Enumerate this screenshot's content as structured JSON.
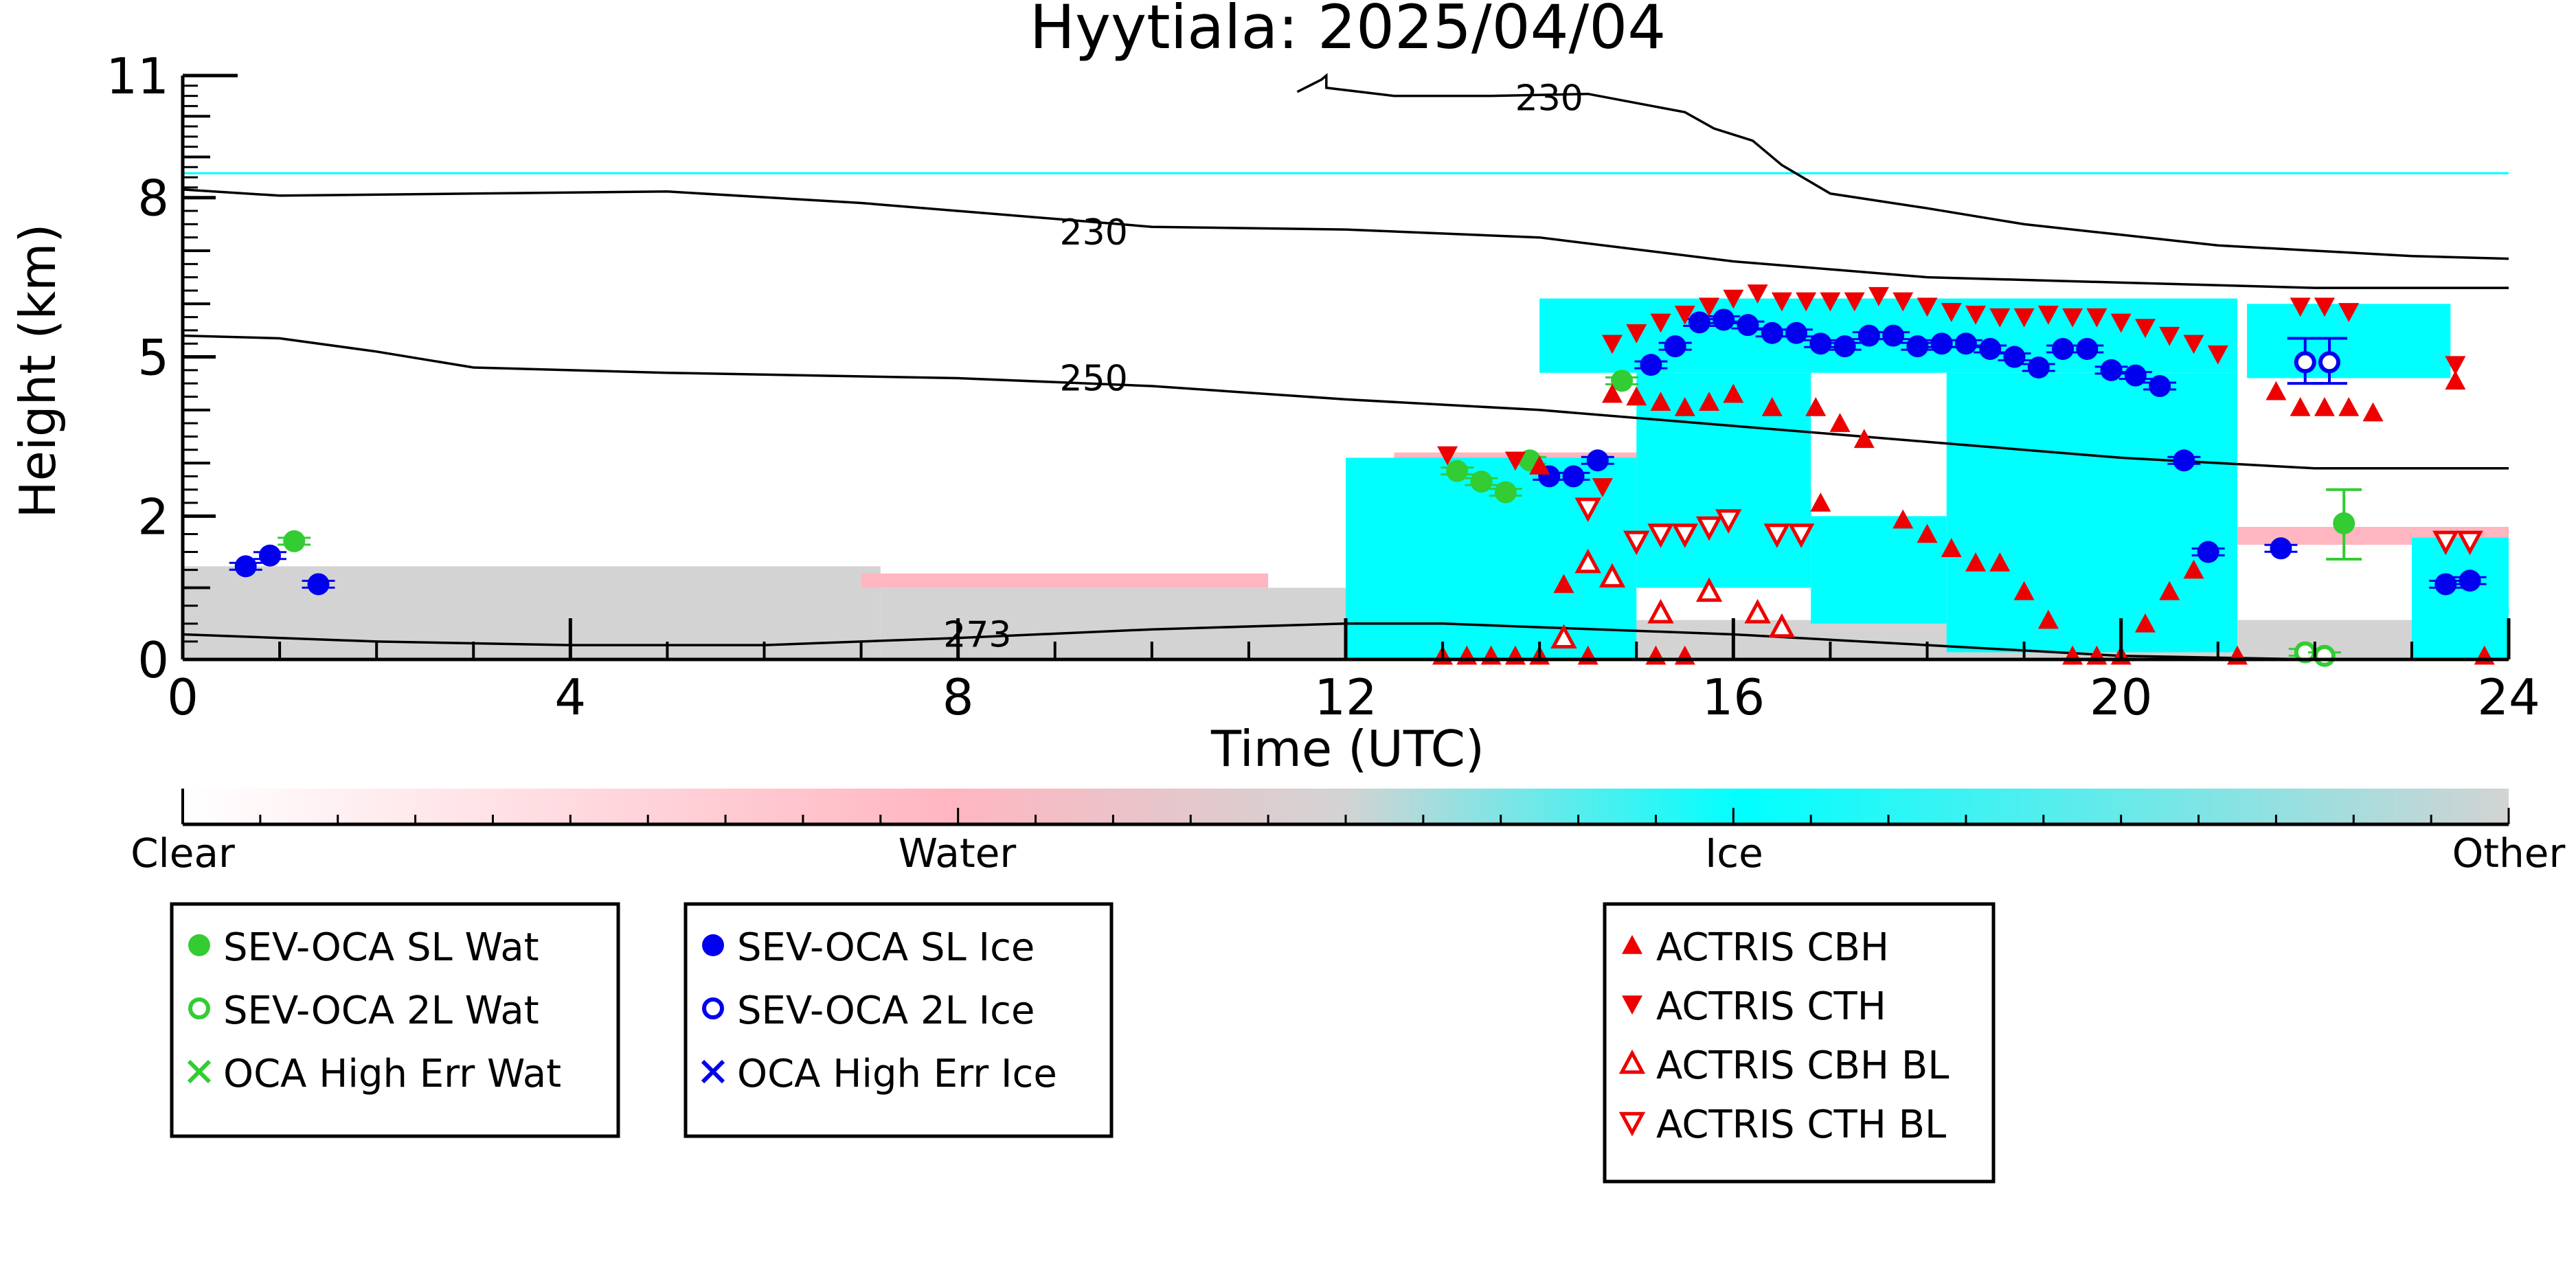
{
  "chart_data": {
    "type": "scatter",
    "title": "Hyytiala: 2025/04/04",
    "xlabel": "Time (UTC)",
    "ylabel": "Height (km)",
    "xlim": [
      0,
      24
    ],
    "ylim": [
      0,
      11
    ],
    "xticks": [
      0,
      4,
      8,
      12,
      16,
      20,
      24
    ],
    "yticks": [
      0,
      2,
      5,
      8,
      11
    ],
    "yscale": "nonlinear (stretched near surface)",
    "y_warp_knots": [
      [
        0,
        0
      ],
      [
        2,
        2.7
      ],
      [
        5,
        5.7
      ],
      [
        8,
        8.7
      ],
      [
        11,
        11
      ]
    ],
    "grid": false,
    "cloudnet_classification": {
      "colorbar": {
        "colors": [
          "#ffffff",
          "#ffb6c1",
          "#d3d3d3",
          "#00ffff",
          "#d3d3d3"
        ],
        "labels": [
          "Clear",
          "Water",
          "Ice",
          "Other"
        ]
      },
      "classes": [
        {
          "name": "Other",
          "color": "#d3d3d3",
          "regions": [
            {
              "x": [
                0.0,
                7.2
              ],
              "y": [
                0,
                1.3
              ]
            },
            {
              "x": [
                7.2,
                12.8
              ],
              "y": [
                0,
                1.0
              ]
            },
            {
              "x": [
                12.8,
                24.0
              ],
              "y": [
                0,
                0.55
              ]
            }
          ]
        },
        {
          "name": "Water",
          "color": "#ffb6c1",
          "regions": [
            {
              "x": [
                7.0,
                11.2
              ],
              "y": [
                1.0,
                1.2
              ]
            },
            {
              "x": [
                12.5,
                15.0
              ],
              "y": [
                2.6,
                3.2
              ]
            },
            {
              "x": [
                21.0,
                24.0
              ],
              "y": [
                1.6,
                1.85
              ]
            }
          ]
        },
        {
          "name": "Ice",
          "color": "#00ffff",
          "regions": [
            {
              "x": [
                14.0,
                21.2
              ],
              "y": [
                4.7,
                6.1
              ]
            },
            {
              "x": [
                21.3,
                23.4
              ],
              "y": [
                4.6,
                6.0
              ]
            },
            {
              "x": [
                18.2,
                21.2
              ],
              "y": [
                0.1,
                4.7
              ]
            },
            {
              "x": [
                15.0,
                16.8
              ],
              "y": [
                1.0,
                4.7
              ]
            },
            {
              "x": [
                12.0,
                15.0
              ],
              "y": [
                0.0,
                3.1
              ]
            },
            {
              "x": [
                16.8,
                18.2
              ],
              "y": [
                0.5,
                2.0
              ]
            },
            {
              "x": [
                23.0,
                24.0
              ],
              "y": [
                0.0,
                1.7
              ]
            }
          ]
        }
      ],
      "faint_line_y": 8.6
    },
    "isotherms": [
      {
        "label": "230",
        "label_x": 14.1,
        "label_y": 10.45,
        "points": [
          [
            11.5,
            10.6
          ],
          [
            11.75,
            10.9
          ],
          [
            11.8,
            11.0
          ],
          [
            11.8,
            10.7
          ],
          [
            12.5,
            10.5
          ],
          [
            13.5,
            10.5
          ],
          [
            14.5,
            10.55
          ],
          [
            15.5,
            10.1
          ],
          [
            15.8,
            9.7
          ],
          [
            16.2,
            9.4
          ],
          [
            16.5,
            8.8
          ],
          [
            17.0,
            8.1
          ],
          [
            18.0,
            7.8
          ],
          [
            19.0,
            7.5
          ],
          [
            20.0,
            7.3
          ],
          [
            21.0,
            7.1
          ],
          [
            22.0,
            7.0
          ],
          [
            23.0,
            6.9
          ],
          [
            24.0,
            6.85
          ]
        ]
      },
      {
        "label": "230",
        "label_x": 9.4,
        "label_y": 7.35,
        "points": [
          [
            0,
            8.2
          ],
          [
            1,
            8.05
          ],
          [
            3,
            8.1
          ],
          [
            5,
            8.15
          ],
          [
            7,
            7.9
          ],
          [
            10,
            7.45
          ],
          [
            12,
            7.4
          ],
          [
            14,
            7.25
          ],
          [
            16,
            6.8
          ],
          [
            18,
            6.5
          ],
          [
            20,
            6.4
          ],
          [
            22,
            6.3
          ],
          [
            24,
            6.3
          ]
        ]
      },
      {
        "label": "250",
        "label_x": 9.4,
        "label_y": 4.6,
        "points": [
          [
            0,
            5.4
          ],
          [
            1,
            5.35
          ],
          [
            2,
            5.1
          ],
          [
            3,
            4.8
          ],
          [
            5,
            4.7
          ],
          [
            8,
            4.6
          ],
          [
            10,
            4.45
          ],
          [
            12,
            4.2
          ],
          [
            14,
            4.0
          ],
          [
            16,
            3.7
          ],
          [
            18,
            3.4
          ],
          [
            20,
            3.1
          ],
          [
            22,
            2.9
          ],
          [
            24,
            2.9
          ]
        ]
      },
      {
        "label": "273",
        "label_x": 8.2,
        "label_y": 0.35,
        "points": [
          [
            0,
            0.35
          ],
          [
            2,
            0.25
          ],
          [
            4,
            0.2
          ],
          [
            6,
            0.2
          ],
          [
            8,
            0.3
          ],
          [
            10,
            0.42
          ],
          [
            12,
            0.5
          ],
          [
            13,
            0.5
          ],
          [
            14,
            0.45
          ],
          [
            16,
            0.35
          ],
          [
            18,
            0.2
          ],
          [
            20,
            0.05
          ],
          [
            22,
            0.0
          ]
        ]
      }
    ],
    "series": [
      {
        "name": "SEV-OCA SL Wat",
        "marker": "filled-circle",
        "color": "#33cc33",
        "points": [
          {
            "x": 1.15,
            "y": 1.65
          },
          {
            "x": 13.15,
            "y": 2.85
          },
          {
            "x": 13.4,
            "y": 2.65
          },
          {
            "x": 13.65,
            "y": 2.45
          },
          {
            "x": 13.9,
            "y": 3.05
          },
          {
            "x": 14.85,
            "y": 4.55
          },
          {
            "x": 22.3,
            "y": 1.9,
            "err": [
              1.4,
              2.5
            ]
          }
        ]
      },
      {
        "name": "SEV-OCA 2L Wat",
        "marker": "open-circle",
        "color": "#33cc33",
        "points": [
          {
            "x": 21.9,
            "y": 0.1
          },
          {
            "x": 22.1,
            "y": 0.05
          }
        ]
      },
      {
        "name": "OCA High Err Wat",
        "marker": "cross",
        "color": "#33cc33",
        "points": []
      },
      {
        "name": "SEV-OCA SL Ice",
        "marker": "filled-circle",
        "color": "#0000ee",
        "points": [
          {
            "x": 0.65,
            "y": 1.3
          },
          {
            "x": 0.9,
            "y": 1.45
          },
          {
            "x": 1.4,
            "y": 1.05
          },
          {
            "x": 14.1,
            "y": 2.75
          },
          {
            "x": 14.35,
            "y": 2.75
          },
          {
            "x": 14.6,
            "y": 3.05
          },
          {
            "x": 15.15,
            "y": 4.85
          },
          {
            "x": 15.4,
            "y": 5.2
          },
          {
            "x": 15.65,
            "y": 5.65
          },
          {
            "x": 15.9,
            "y": 5.7
          },
          {
            "x": 16.15,
            "y": 5.6
          },
          {
            "x": 16.4,
            "y": 5.45
          },
          {
            "x": 16.65,
            "y": 5.45
          },
          {
            "x": 16.9,
            "y": 5.25
          },
          {
            "x": 17.15,
            "y": 5.2
          },
          {
            "x": 17.4,
            "y": 5.4
          },
          {
            "x": 17.65,
            "y": 5.4
          },
          {
            "x": 17.9,
            "y": 5.2
          },
          {
            "x": 18.15,
            "y": 5.25
          },
          {
            "x": 18.4,
            "y": 5.25
          },
          {
            "x": 18.65,
            "y": 5.15
          },
          {
            "x": 18.9,
            "y": 5.0
          },
          {
            "x": 19.15,
            "y": 4.8
          },
          {
            "x": 19.4,
            "y": 5.15
          },
          {
            "x": 19.65,
            "y": 5.15
          },
          {
            "x": 19.9,
            "y": 4.75
          },
          {
            "x": 20.15,
            "y": 4.65
          },
          {
            "x": 20.4,
            "y": 4.45
          },
          {
            "x": 20.65,
            "y": 3.05
          },
          {
            "x": 20.9,
            "y": 1.5
          },
          {
            "x": 21.65,
            "y": 1.55
          },
          {
            "x": 23.35,
            "y": 1.05
          },
          {
            "x": 23.6,
            "y": 1.1
          }
        ]
      },
      {
        "name": "SEV-OCA 2L Ice",
        "marker": "open-circle",
        "color": "#0000ee",
        "points": [
          {
            "x": 21.9,
            "y": 4.9,
            "err": [
              4.5,
              5.35
            ]
          },
          {
            "x": 22.15,
            "y": 4.9,
            "err": [
              4.5,
              5.35
            ]
          }
        ]
      },
      {
        "name": "OCA High Err Ice",
        "marker": "cross",
        "color": "#0000ee",
        "points": []
      },
      {
        "name": "ACTRIS CBH",
        "marker": "filled-triangle-up",
        "color": "#ee0000",
        "points": [
          {
            "x": 13.0,
            "y": 0.05
          },
          {
            "x": 13.25,
            "y": 0.05
          },
          {
            "x": 13.5,
            "y": 0.05
          },
          {
            "x": 13.75,
            "y": 0.05
          },
          {
            "x": 14.0,
            "y": 0.05
          },
          {
            "x": 14.5,
            "y": 0.05
          },
          {
            "x": 15.2,
            "y": 0.05
          },
          {
            "x": 15.5,
            "y": 0.05
          },
          {
            "x": 14.25,
            "y": 1.05
          },
          {
            "x": 14.0,
            "y": 2.95
          },
          {
            "x": 14.75,
            "y": 4.3
          },
          {
            "x": 15.0,
            "y": 4.25
          },
          {
            "x": 15.25,
            "y": 4.15
          },
          {
            "x": 15.5,
            "y": 4.05
          },
          {
            "x": 15.75,
            "y": 4.15
          },
          {
            "x": 16.0,
            "y": 4.3
          },
          {
            "x": 16.4,
            "y": 4.05
          },
          {
            "x": 16.85,
            "y": 4.05
          },
          {
            "x": 17.1,
            "y": 3.75
          },
          {
            "x": 17.35,
            "y": 3.45
          },
          {
            "x": 16.9,
            "y": 2.25
          },
          {
            "x": 17.75,
            "y": 1.95
          },
          {
            "x": 18.0,
            "y": 1.75
          },
          {
            "x": 18.25,
            "y": 1.55
          },
          {
            "x": 18.5,
            "y": 1.35
          },
          {
            "x": 18.75,
            "y": 1.35
          },
          {
            "x": 19.0,
            "y": 0.95
          },
          {
            "x": 19.25,
            "y": 0.55
          },
          {
            "x": 19.5,
            "y": 0.05
          },
          {
            "x": 19.75,
            "y": 0.05
          },
          {
            "x": 20.0,
            "y": 0.05
          },
          {
            "x": 20.25,
            "y": 0.5
          },
          {
            "x": 20.5,
            "y": 0.95
          },
          {
            "x": 20.75,
            "y": 1.25
          },
          {
            "x": 21.2,
            "y": 0.05
          },
          {
            "x": 21.6,
            "y": 4.35
          },
          {
            "x": 21.85,
            "y": 4.05
          },
          {
            "x": 22.1,
            "y": 4.05
          },
          {
            "x": 22.35,
            "y": 4.05
          },
          {
            "x": 22.6,
            "y": 3.95
          },
          {
            "x": 23.45,
            "y": 4.55
          },
          {
            "x": 23.75,
            "y": 0.05
          }
        ]
      },
      {
        "name": "ACTRIS CTH",
        "marker": "filled-triangle-down",
        "color": "#ee0000",
        "points": [
          {
            "x": 13.05,
            "y": 3.15
          },
          {
            "x": 13.75,
            "y": 3.05
          },
          {
            "x": 14.65,
            "y": 2.55
          },
          {
            "x": 14.75,
            "y": 5.25
          },
          {
            "x": 15.0,
            "y": 5.45
          },
          {
            "x": 15.25,
            "y": 5.65
          },
          {
            "x": 15.5,
            "y": 5.8
          },
          {
            "x": 15.75,
            "y": 5.95
          },
          {
            "x": 16.0,
            "y": 6.1
          },
          {
            "x": 16.25,
            "y": 6.2
          },
          {
            "x": 16.5,
            "y": 6.05
          },
          {
            "x": 16.75,
            "y": 6.05
          },
          {
            "x": 17.0,
            "y": 6.05
          },
          {
            "x": 17.25,
            "y": 6.05
          },
          {
            "x": 17.5,
            "y": 6.15
          },
          {
            "x": 17.75,
            "y": 6.05
          },
          {
            "x": 18.0,
            "y": 5.95
          },
          {
            "x": 18.25,
            "y": 5.85
          },
          {
            "x": 18.5,
            "y": 5.8
          },
          {
            "x": 18.75,
            "y": 5.75
          },
          {
            "x": 19.0,
            "y": 5.75
          },
          {
            "x": 19.25,
            "y": 5.8
          },
          {
            "x": 19.5,
            "y": 5.75
          },
          {
            "x": 19.75,
            "y": 5.75
          },
          {
            "x": 20.0,
            "y": 5.65
          },
          {
            "x": 20.25,
            "y": 5.55
          },
          {
            "x": 20.5,
            "y": 5.4
          },
          {
            "x": 20.75,
            "y": 5.25
          },
          {
            "x": 21.0,
            "y": 5.05
          },
          {
            "x": 21.85,
            "y": 5.95
          },
          {
            "x": 22.1,
            "y": 5.95
          },
          {
            "x": 22.35,
            "y": 5.85
          },
          {
            "x": 23.45,
            "y": 4.85
          }
        ]
      },
      {
        "name": "ACTRIS CBH BL",
        "marker": "open-triangle-up",
        "color": "#ee0000",
        "points": [
          {
            "x": 14.25,
            "y": 0.3
          },
          {
            "x": 14.5,
            "y": 1.35
          },
          {
            "x": 14.75,
            "y": 1.15
          },
          {
            "x": 15.25,
            "y": 0.65
          },
          {
            "x": 15.75,
            "y": 0.95
          },
          {
            "x": 16.25,
            "y": 0.65
          },
          {
            "x": 16.5,
            "y": 0.45
          }
        ]
      },
      {
        "name": "ACTRIS CTH BL",
        "marker": "open-triangle-down",
        "color": "#ee0000",
        "points": [
          {
            "x": 14.5,
            "y": 2.15
          },
          {
            "x": 15.0,
            "y": 1.65
          },
          {
            "x": 15.25,
            "y": 1.75
          },
          {
            "x": 15.5,
            "y": 1.75
          },
          {
            "x": 15.75,
            "y": 1.85
          },
          {
            "x": 15.95,
            "y": 1.95
          },
          {
            "x": 16.45,
            "y": 1.75
          },
          {
            "x": 16.7,
            "y": 1.75
          },
          {
            "x": 23.35,
            "y": 1.65
          },
          {
            "x": 23.6,
            "y": 1.65
          }
        ]
      }
    ],
    "legends": [
      {
        "entries": [
          "SEV-OCA SL Wat",
          "SEV-OCA 2L Wat",
          "OCA High Err Wat"
        ]
      },
      {
        "entries": [
          "SEV-OCA SL Ice",
          "SEV-OCA 2L Ice",
          "OCA High Err Ice"
        ]
      },
      {
        "entries": [
          "ACTRIS CBH",
          "ACTRIS CTH",
          "ACTRIS CBH BL",
          "ACTRIS CTH BL"
        ]
      }
    ]
  }
}
